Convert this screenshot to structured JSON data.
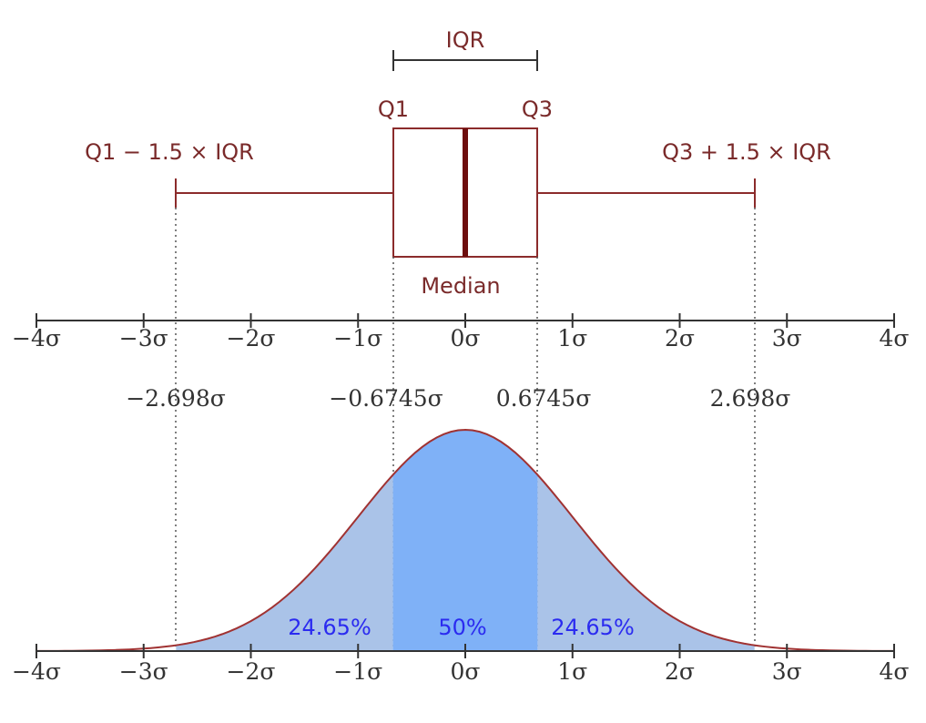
{
  "boxplot": {
    "iqr_label": "IQR",
    "q1_label": "Q1",
    "q3_label": "Q3",
    "lower_fence_label": "Q1 − 1.5 × IQR",
    "upper_fence_label": "Q3 + 1.5 × IQR",
    "median_label": "Median",
    "q1": -0.6745,
    "median": 0,
    "q3": 0.6745,
    "lower_fence": -2.698,
    "upper_fence": 2.698
  },
  "axis": {
    "range": [
      -4,
      4
    ],
    "tick_labels": [
      "−4σ",
      "−3σ",
      "−2σ",
      "−1σ",
      "0σ",
      "1σ",
      "2σ",
      "3σ",
      "4σ"
    ]
  },
  "markers": [
    {
      "value": -2.698,
      "label": "−2.698σ"
    },
    {
      "value": -0.6745,
      "label": "−0.6745σ"
    },
    {
      "value": 0.6745,
      "label": "0.6745σ"
    },
    {
      "value": 2.698,
      "label": "2.698σ"
    }
  ],
  "distribution": {
    "regions": [
      {
        "from": -2.698,
        "to": -0.6745,
        "label": "24.65%"
      },
      {
        "from": -0.6745,
        "to": 0.6745,
        "label": "50%"
      },
      {
        "from": 0.6745,
        "to": 2.698,
        "label": "24.65%"
      }
    ]
  },
  "colors": {
    "box_stroke": "#8b2b2b",
    "median": "#6e0e0e",
    "axis": "#333333",
    "outer_fill": "#aac3e8",
    "center_fill": "#7fb1f7",
    "curve": "#a03232",
    "percent_text": "#2b2bf0"
  }
}
